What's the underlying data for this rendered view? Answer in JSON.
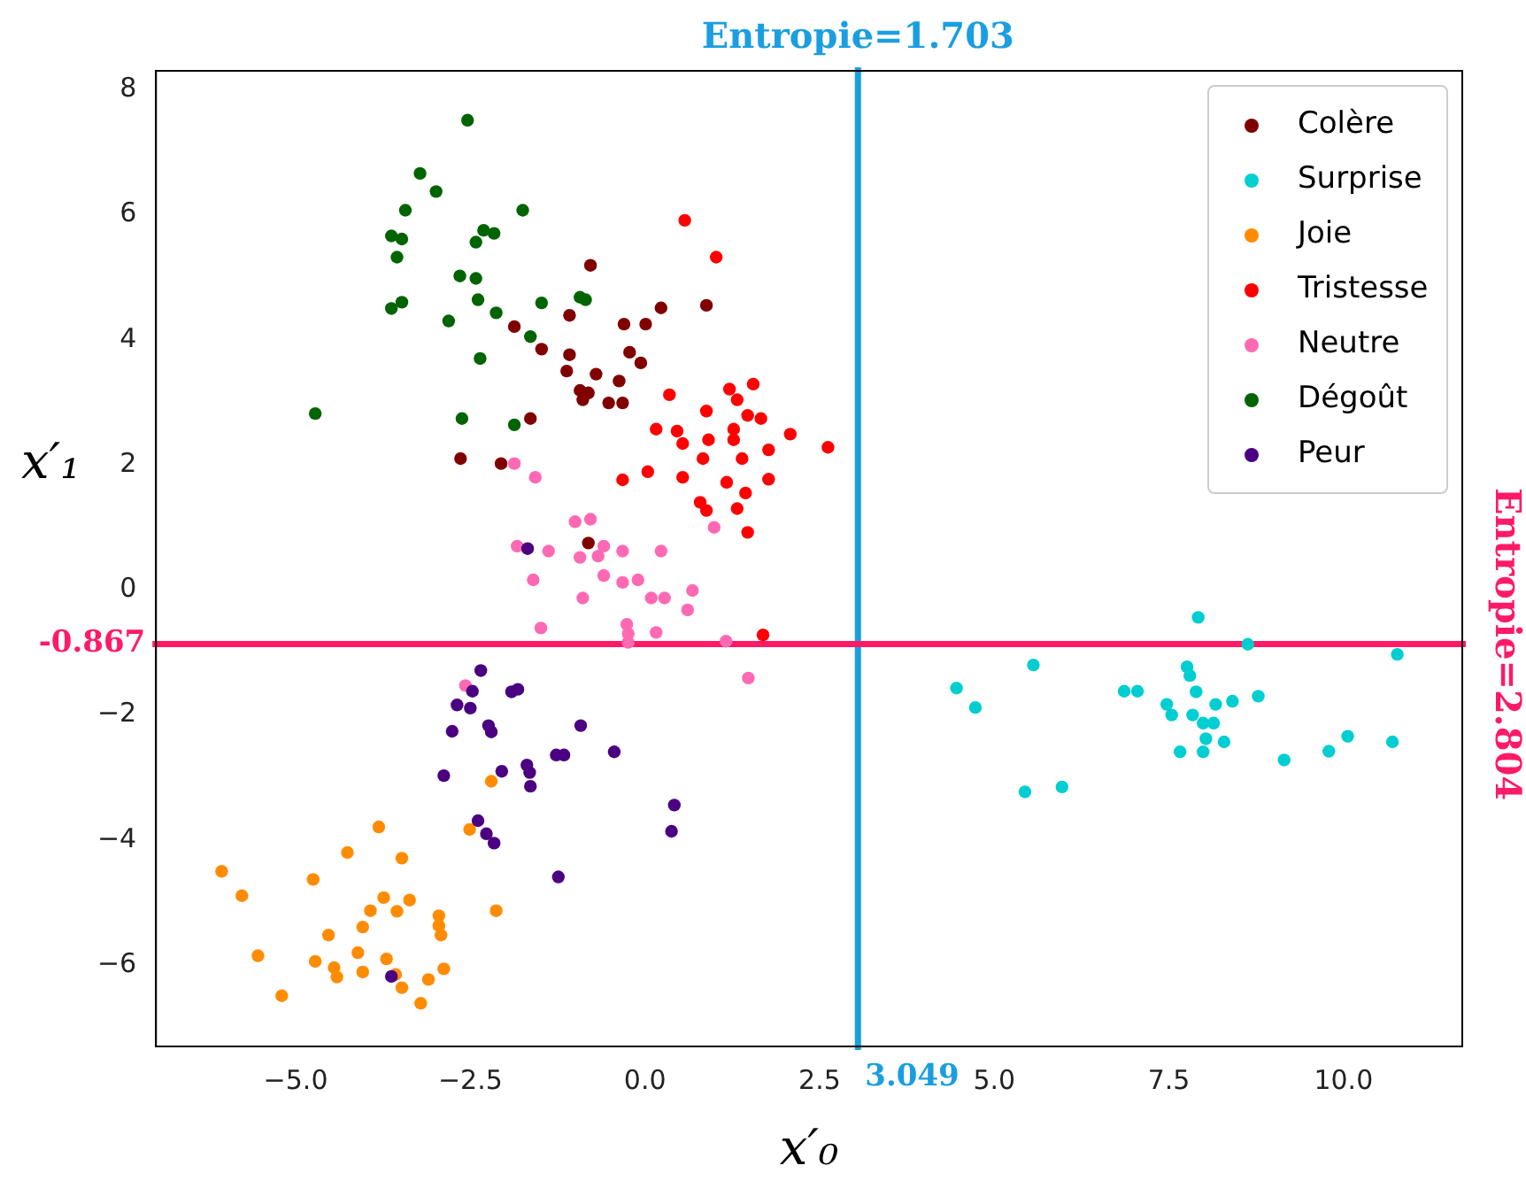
{
  "chart_data": {
    "type": "scatter",
    "xlabel": "x′₀",
    "ylabel": "x′₁",
    "xlim": [
      -7,
      11.7
    ],
    "ylim": [
      -7.3,
      8.3
    ],
    "xticks": [
      {
        "value": -5,
        "label": "−5.0"
      },
      {
        "value": -2.5,
        "label": "−2.5"
      },
      {
        "value": 0,
        "label": "0.0"
      },
      {
        "value": 2.5,
        "label": "2.5"
      },
      {
        "value": 5,
        "label": "5.0"
      },
      {
        "value": 7.5,
        "label": "7.5"
      },
      {
        "value": 10,
        "label": "10.0"
      }
    ],
    "yticks": [
      {
        "value": -6,
        "label": "−6"
      },
      {
        "value": -4,
        "label": "−4"
      },
      {
        "value": -2,
        "label": "−2"
      },
      0,
      2,
      4,
      6,
      8
    ],
    "grid": false,
    "legend": "top right",
    "marker": "circle",
    "ref_lines": [
      {
        "axis": "x",
        "value": 3.049,
        "label": "3.049",
        "color": "#1a9ee0"
      },
      {
        "axis": "y",
        "value": -0.867,
        "label": "-0.867",
        "color": "#ff1a66"
      }
    ],
    "annotations": [
      "Entropie=1.703",
      "Entropie=2.804"
    ],
    "series": [
      {
        "name": "Colère",
        "color": "#800000",
        "x": [
          -0.78,
          0.23,
          0.88,
          -1.08,
          -1.87,
          -0.3,
          0.01,
          -1.48,
          -1.08,
          -0.22,
          -0.06,
          -1.12,
          -0.7,
          -0.37,
          -0.93,
          -0.81,
          -0.89,
          -0.52,
          -0.32,
          -1.64,
          -2.64,
          -2.06,
          -0.81
        ],
        "values": [
          5.19,
          4.51,
          4.55,
          4.39,
          4.21,
          4.25,
          4.25,
          3.85,
          3.76,
          3.8,
          3.63,
          3.5,
          3.45,
          3.34,
          3.19,
          3.15,
          3.04,
          2.99,
          2.99,
          2.74,
          2.1,
          2.02,
          0.75
        ]
      },
      {
        "name": "Surprise",
        "color": "#00ced1",
        "x": [
          7.92,
          8.63,
          10.77,
          5.56,
          7.76,
          7.8,
          4.46,
          4.73,
          6.86,
          7.05,
          7.89,
          7.47,
          7.54,
          7.84,
          8.17,
          8.41,
          8.78,
          7.99,
          8.14,
          8.03,
          8.29,
          7.66,
          7.99,
          9.15,
          9.79,
          10.06,
          10.7,
          5.44,
          5.97
        ],
        "values": [
          -0.44,
          -0.87,
          -1.03,
          -1.2,
          -1.23,
          -1.37,
          -1.57,
          -1.88,
          -1.62,
          -1.62,
          -1.63,
          -1.83,
          -2.0,
          -2.0,
          -1.83,
          -1.78,
          -1.7,
          -2.13,
          -2.13,
          -2.38,
          -2.43,
          -2.59,
          -2.59,
          -2.72,
          -2.58,
          -2.34,
          -2.43,
          -3.23,
          -3.15
        ]
      },
      {
        "name": "Joie",
        "color": "#ff8c00",
        "x": [
          -2.2,
          -2.51,
          -3.81,
          -4.26,
          -3.48,
          -6.06,
          -4.75,
          -5.77,
          -3.74,
          -3.37,
          -3.93,
          -3.55,
          -2.13,
          -2.95,
          -2.95,
          -2.92,
          -4.04,
          -4.53,
          -5.54,
          -4.11,
          -3.7,
          -4.72,
          -4.45,
          -4.41,
          -4.04,
          -3.57,
          -2.88,
          -3.1,
          -3.48,
          -5.2,
          -3.21
        ],
        "values": [
          -3.06,
          -3.83,
          -3.79,
          -4.2,
          -4.29,
          -4.5,
          -4.63,
          -4.89,
          -4.92,
          -4.96,
          -5.13,
          -5.14,
          -5.13,
          -5.21,
          -5.37,
          -5.52,
          -5.39,
          -5.52,
          -5.85,
          -5.8,
          -5.9,
          -5.94,
          -6.04,
          -6.19,
          -6.11,
          -6.15,
          -6.06,
          -6.23,
          -6.36,
          -6.49,
          -6.61
        ]
      },
      {
        "name": "Tristesse",
        "color": "#ff0000",
        "x": [
          0.57,
          1.02,
          0.35,
          1.21,
          1.55,
          1.32,
          0.88,
          1.47,
          1.66,
          2.08,
          0.16,
          0.46,
          0.54,
          0.91,
          1.27,
          1.27,
          1.77,
          0.83,
          1.39,
          -0.32,
          0.04,
          0.54,
          1.17,
          1.77,
          1.44,
          0.79,
          0.88,
          1.32,
          1.47,
          2.62,
          1.69
        ],
        "values": [
          5.91,
          5.32,
          3.12,
          3.21,
          3.29,
          3.04,
          2.86,
          2.79,
          2.74,
          2.49,
          2.57,
          2.54,
          2.34,
          2.4,
          2.57,
          2.4,
          2.24,
          2.1,
          2.1,
          1.76,
          1.89,
          1.8,
          1.72,
          1.77,
          1.55,
          1.4,
          1.27,
          1.3,
          0.92,
          2.28,
          -0.72
        ]
      },
      {
        "name": "Neutre",
        "color": "#ff69b4",
        "x": [
          -1.87,
          -1.57,
          -1.0,
          -0.78,
          0.99,
          -1.83,
          -1.38,
          -0.59,
          -0.32,
          0.23,
          -0.93,
          -0.67,
          -1.6,
          -0.59,
          -0.32,
          -0.1,
          0.68,
          -0.89,
          0.09,
          0.28,
          0.61,
          -1.49,
          -0.26,
          -0.24,
          -0.24,
          0.16,
          1.16,
          1.48,
          -2.57
        ],
        "values": [
          2.02,
          1.8,
          1.09,
          1.13,
          1.0,
          0.7,
          0.62,
          0.7,
          0.62,
          0.62,
          0.52,
          0.54,
          0.16,
          0.23,
          0.12,
          0.16,
          -0.01,
          -0.13,
          -0.13,
          -0.13,
          -0.32,
          -0.61,
          -0.55,
          -0.7,
          -0.84,
          -0.68,
          -0.82,
          -1.41,
          -1.53
        ]
      },
      {
        "name": "Dégoût",
        "color": "#006400",
        "x": [
          -2.54,
          -3.22,
          -2.99,
          -3.43,
          -1.75,
          -3.63,
          -3.48,
          -2.31,
          -2.16,
          -2.42,
          -3.55,
          -2.65,
          -2.42,
          -2.39,
          -3.63,
          -3.48,
          -2.13,
          -2.81,
          -1.48,
          -0.93,
          -0.85,
          -1.64,
          -2.36,
          -4.72,
          -2.62,
          -1.87
        ],
        "values": [
          7.51,
          6.66,
          6.37,
          6.07,
          6.07,
          5.66,
          5.61,
          5.75,
          5.7,
          5.56,
          5.32,
          5.02,
          4.98,
          4.64,
          4.5,
          4.6,
          4.43,
          4.3,
          4.59,
          4.68,
          4.64,
          4.05,
          3.7,
          2.82,
          2.74,
          2.64
        ]
      },
      {
        "name": "Peur",
        "color": "#4b0082",
        "x": [
          -1.68,
          -2.35,
          -2.47,
          -1.91,
          -1.82,
          -2.69,
          -2.5,
          -2.76,
          -2.24,
          -2.2,
          -0.92,
          -0.44,
          -1.69,
          -1.65,
          -1.64,
          -2.05,
          -1.27,
          -1.16,
          -2.88,
          -2.39,
          -2.27,
          -2.16,
          0.42,
          0.38,
          -1.24,
          -3.63
        ],
        "values": [
          0.66,
          -1.29,
          -1.62,
          -1.63,
          -1.59,
          -1.84,
          -1.89,
          -2.26,
          -2.17,
          -2.27,
          -2.17,
          -2.59,
          -2.8,
          -2.92,
          -3.14,
          -2.9,
          -2.64,
          -2.64,
          -2.97,
          -3.69,
          -3.9,
          -4.05,
          -3.44,
          -3.86,
          -4.59,
          -6.18
        ]
      }
    ]
  }
}
